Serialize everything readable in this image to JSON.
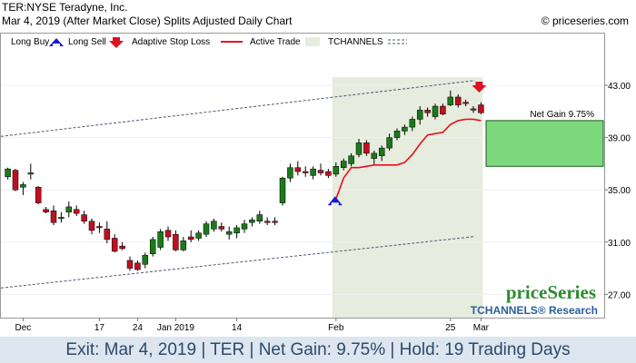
{
  "header": {
    "line1": "TER:NYSE Teradyne, Inc.",
    "line2": "Mar 4, 2019 (After Market Close)  Splits Adjusted Daily Chart",
    "copyright": "© priceseries.com"
  },
  "legend": {
    "long_buy": "Long Buy",
    "long_sell": "Long Sell",
    "stop": "Adaptive Stop Loss",
    "active": "Active Trade",
    "channels": "TCHANNELS"
  },
  "colors": {
    "up": "#1a7a1a",
    "down": "#c01020",
    "stop_line": "#e8101a",
    "trade_bg": "#e6ecde",
    "gain_box": "#7ed87e",
    "channel": "#4a5a70",
    "brand_green": "#2f8a2f",
    "brand_blue": "#2a5f9a"
  },
  "annotation": {
    "net_gain": "Net Gain 9.75%"
  },
  "brand": {
    "name": "priceSeries",
    "research": "TCHANNELS® Research"
  },
  "footer": {
    "text": "Exit: Mar 4, 2019 | TER | Net Gain: 9.75% | Hold: 19 Trading Days"
  },
  "chart_data": {
    "type": "candlestick",
    "y_ticks": [
      "43.00",
      "39.00",
      "35.00",
      "31.00",
      "27.00"
    ],
    "ylim": [
      25.5,
      45.5
    ],
    "x_labels": [
      {
        "label": "Dec",
        "index": 2
      },
      {
        "label": "17",
        "index": 12
      },
      {
        "label": "24",
        "index": 17
      },
      {
        "label": "Jan 2019",
        "index": 22
      },
      {
        "label": "14",
        "index": 30
      },
      {
        "label": "Feb",
        "index": 43
      },
      {
        "label": "25",
        "index": 58
      },
      {
        "label": "Mar",
        "index": 62
      }
    ],
    "candles": [
      [
        36.0,
        36.7,
        35.8,
        36.6
      ],
      [
        36.5,
        36.6,
        34.9,
        35.0
      ],
      [
        35.2,
        35.6,
        34.6,
        35.4
      ],
      [
        36.2,
        37.0,
        35.8,
        36.3
      ],
      [
        35.2,
        35.3,
        33.9,
        34.0
      ],
      [
        33.5,
        33.7,
        33.2,
        33.3
      ],
      [
        33.4,
        33.8,
        32.3,
        32.5
      ],
      [
        32.8,
        33.3,
        32.5,
        32.9
      ],
      [
        33.3,
        34.1,
        32.9,
        33.7
      ],
      [
        33.5,
        33.8,
        33.0,
        33.2
      ],
      [
        33.1,
        33.4,
        32.4,
        32.6
      ],
      [
        32.6,
        32.8,
        31.6,
        31.9
      ],
      [
        32.2,
        32.5,
        31.7,
        32.1
      ],
      [
        32.0,
        32.6,
        30.9,
        31.2
      ],
      [
        31.3,
        31.6,
        30.2,
        30.3
      ],
      [
        30.7,
        31.0,
        30.4,
        30.5
      ],
      [
        29.6,
        29.9,
        28.8,
        29.0
      ],
      [
        29.4,
        29.6,
        28.8,
        28.9
      ],
      [
        29.3,
        30.2,
        29.0,
        30.0
      ],
      [
        30.1,
        31.4,
        29.9,
        31.2
      ],
      [
        30.6,
        32.0,
        30.4,
        31.8
      ],
      [
        31.9,
        32.2,
        31.1,
        31.4
      ],
      [
        31.6,
        31.9,
        30.3,
        30.4
      ],
      [
        30.4,
        31.4,
        30.3,
        31.1
      ],
      [
        31.4,
        31.9,
        31.0,
        31.2
      ],
      [
        31.3,
        31.9,
        31.1,
        31.7
      ],
      [
        31.6,
        32.6,
        31.4,
        32.4
      ],
      [
        32.0,
        32.8,
        31.8,
        32.6
      ],
      [
        32.2,
        32.5,
        31.8,
        32.0
      ],
      [
        31.6,
        32.2,
        31.2,
        31.8
      ],
      [
        31.7,
        32.3,
        31.3,
        32.1
      ],
      [
        32.0,
        32.7,
        31.7,
        32.4
      ],
      [
        32.5,
        32.9,
        32.2,
        32.7
      ],
      [
        32.6,
        33.4,
        32.4,
        33.1
      ],
      [
        32.6,
        32.9,
        32.3,
        32.5
      ],
      [
        32.6,
        32.9,
        32.3,
        32.5
      ],
      [
        34.0,
        36.0,
        33.8,
        35.9
      ],
      [
        35.9,
        37.0,
        35.6,
        36.7
      ],
      [
        36.7,
        37.2,
        36.1,
        36.4
      ],
      [
        36.4,
        36.8,
        36.0,
        36.3
      ],
      [
        36.1,
        36.8,
        35.8,
        36.6
      ],
      [
        36.5,
        37.0,
        36.1,
        36.3
      ],
      [
        36.4,
        36.6,
        35.9,
        36.1
      ],
      [
        36.2,
        37.1,
        36.0,
        36.8
      ],
      [
        36.7,
        37.4,
        36.5,
        37.2
      ],
      [
        37.0,
        37.8,
        36.8,
        37.6
      ],
      [
        37.7,
        38.9,
        37.5,
        38.6
      ],
      [
        38.6,
        38.8,
        37.6,
        37.8
      ],
      [
        37.4,
        38.0,
        36.9,
        37.8
      ],
      [
        37.6,
        38.4,
        37.2,
        38.2
      ],
      [
        38.2,
        39.3,
        38.0,
        39.0
      ],
      [
        39.0,
        39.7,
        38.8,
        39.5
      ],
      [
        39.5,
        40.0,
        39.2,
        39.8
      ],
      [
        39.8,
        40.6,
        39.5,
        40.4
      ],
      [
        40.4,
        41.4,
        40.0,
        41.1
      ],
      [
        41.1,
        41.3,
        40.6,
        40.9
      ],
      [
        40.6,
        41.6,
        40.4,
        41.4
      ],
      [
        41.4,
        41.6,
        40.7,
        40.8
      ],
      [
        41.5,
        42.6,
        41.4,
        42.1
      ],
      [
        42.1,
        42.3,
        41.3,
        41.5
      ],
      [
        41.7,
        41.9,
        41.4,
        41.6
      ],
      [
        41.2,
        41.4,
        40.9,
        41.1
      ],
      [
        41.5,
        41.7,
        40.8,
        40.9
      ]
    ],
    "trade": {
      "entry_index": 43,
      "exit_index": 62,
      "entry_marker": 34.3,
      "exit_marker": 43.0,
      "net_gain_pct": 9.75,
      "gain_range": [
        36.8,
        40.3
      ],
      "stop_loss": [
        [
          43,
          34.3
        ],
        [
          44,
          35.9
        ],
        [
          45,
          36.7
        ],
        [
          46,
          36.7
        ],
        [
          47,
          36.8
        ],
        [
          48,
          36.9
        ],
        [
          49,
          36.9
        ],
        [
          50,
          36.9
        ],
        [
          51,
          36.9
        ],
        [
          52,
          37.1
        ],
        [
          53,
          37.7
        ],
        [
          54,
          38.5
        ],
        [
          55,
          39.2
        ],
        [
          56,
          39.3
        ],
        [
          57,
          39.4
        ],
        [
          58,
          40.0
        ],
        [
          59,
          40.3
        ],
        [
          60,
          40.4
        ],
        [
          61,
          40.4
        ],
        [
          62,
          40.3
        ]
      ]
    },
    "channel_upper": [
      [
        -1.5,
        39.05
      ],
      [
        61.2,
        43.37
      ]
    ],
    "channel_lower": [
      [
        -1.5,
        27.45
      ],
      [
        61.2,
        31.43
      ]
    ]
  }
}
